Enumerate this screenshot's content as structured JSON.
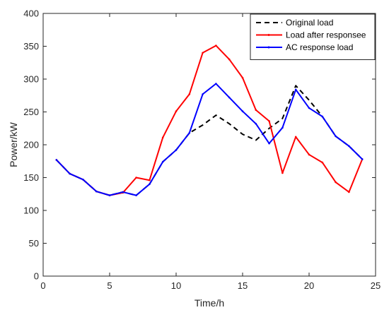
{
  "chart_data": {
    "type": "line",
    "xlabel": "Time/h",
    "ylabel": "Power/kW",
    "xlim": [
      0,
      25
    ],
    "ylim": [
      0,
      400
    ],
    "xticks": [
      0,
      5,
      10,
      15,
      20,
      25
    ],
    "yticks": [
      0,
      50,
      100,
      150,
      200,
      250,
      300,
      350,
      400
    ],
    "grid": false,
    "legend_position": "top-right",
    "series": [
      {
        "name": "Original load",
        "color": "#000000",
        "style": "dashed",
        "x": [
          1,
          2,
          3,
          4,
          5,
          6,
          7,
          8,
          9,
          10,
          11,
          12,
          13,
          14,
          15,
          16,
          17,
          18,
          19,
          20,
          21,
          22,
          23,
          24
        ],
        "y": [
          177,
          156,
          147,
          129,
          123,
          128,
          123,
          140,
          174,
          192,
          218,
          230,
          245,
          232,
          216,
          207,
          225,
          240,
          290,
          268,
          243,
          213,
          198,
          178
        ]
      },
      {
        "name": "Load after responsee",
        "color": "#ff0000",
        "style": "solid",
        "x": [
          1,
          2,
          3,
          4,
          5,
          6,
          7,
          8,
          9,
          10,
          11,
          12,
          13,
          14,
          15,
          16,
          17,
          18,
          19,
          20,
          21,
          22,
          23,
          24
        ],
        "y": [
          177,
          156,
          147,
          129,
          123,
          127,
          150,
          146,
          211,
          251,
          277,
          340,
          351,
          330,
          302,
          253,
          236,
          157,
          212,
          185,
          173,
          143,
          128,
          178
        ]
      },
      {
        "name": "AC response load",
        "color": "#0000ff",
        "style": "solid",
        "x": [
          1,
          2,
          3,
          4,
          5,
          6,
          7,
          8,
          9,
          10,
          11,
          12,
          13,
          14,
          15,
          16,
          17,
          18,
          19,
          20,
          21,
          22,
          23,
          24
        ],
        "y": [
          177,
          156,
          147,
          129,
          123,
          128,
          123,
          140,
          174,
          192,
          218,
          277,
          293,
          272,
          251,
          232,
          202,
          226,
          284,
          256,
          243,
          213,
          198,
          178
        ]
      }
    ]
  }
}
